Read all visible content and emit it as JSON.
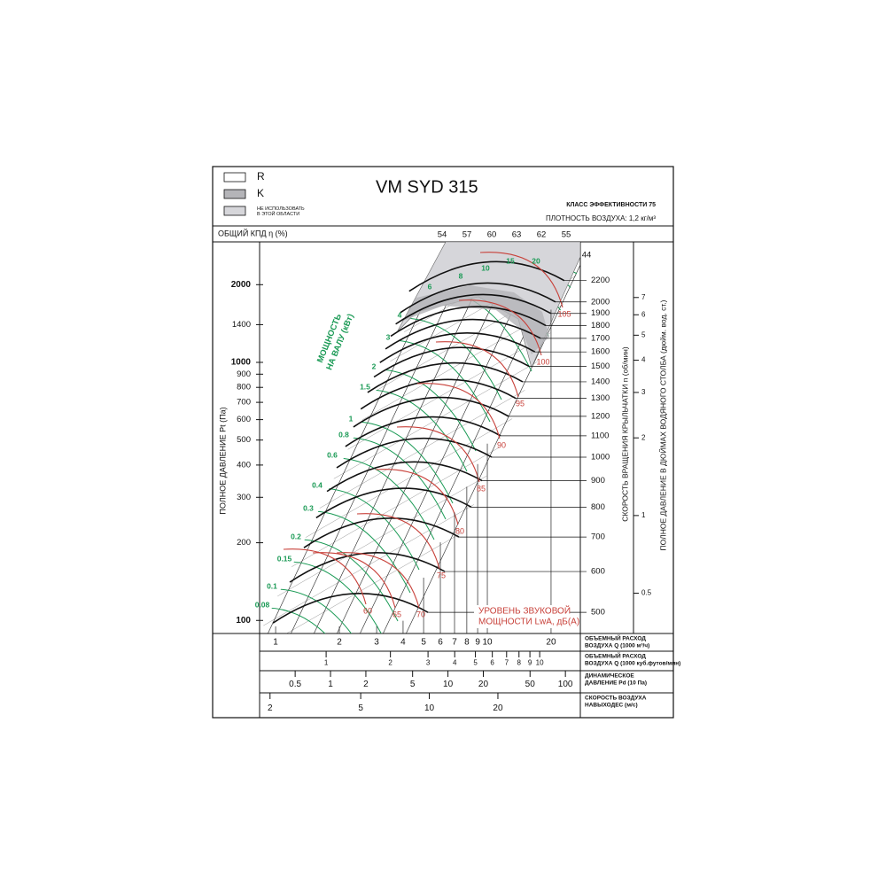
{
  "chart_data": {
    "type": "fan-curve",
    "title": "VM SYD 315",
    "efficiency_class": "КЛАСС ЭФФЕКТИВНОСТИ 75",
    "air_density": "ПЛОТНОСТЬ ВОЗДУХА: 1,2 кг/м³",
    "legend": [
      {
        "name": "R",
        "color": "#ffffff"
      },
      {
        "name": "K",
        "color": "#b4b4b8"
      },
      {
        "name": [
          "НЕ ИСПОЛЬЗОВАТЬ",
          "В ЭТОЙ ОБЛАСТИ"
        ],
        "color": "#d6d6da"
      }
    ],
    "efficiency_label": "ОБЩИЙ КПД η (%)",
    "efficiency_values": [
      54,
      57,
      60,
      63,
      62,
      55,
      44
    ],
    "ylabel": "ПОЛНОЕ ДАВЛЕНИЕ Pt (Па)",
    "yscale": "log",
    "ylim": [
      89,
      2930
    ],
    "yticks": [
      100,
      200,
      300,
      400,
      500,
      600,
      700,
      800,
      900,
      1000,
      1400,
      2000
    ],
    "power_label": [
      "МОЩНОСТЬ",
      "НА ВАЛУ (кВт)"
    ],
    "power_color": "#1a9a55",
    "power_values": [
      0.08,
      0.1,
      0.15,
      0.2,
      0.3,
      0.4,
      0.6,
      0.8,
      1,
      1.5,
      2,
      3,
      4,
      6,
      8,
      10,
      15,
      20
    ],
    "sound_label": [
      "УРОВЕНЬ ЗВУКОВОЙ",
      "МОЩНОСТИ LwA, дБ(A)"
    ],
    "sound_color": "#c8413a",
    "sound_values": [
      60,
      65,
      70,
      75,
      80,
      85,
      90,
      95,
      100,
      105
    ],
    "rpm_label": "СКОРОСТЬ ВРАЩЕНИЯ КРЫЛЬЧАТКИ n (об/мин)",
    "y2lim": [
      455,
      2615
    ],
    "y2ticks": [
      500,
      600,
      700,
      800,
      900,
      1000,
      1100,
      1200,
      1300,
      1400,
      1500,
      1600,
      1700,
      1800,
      1900,
      2000,
      2200
    ],
    "inch_label": "ПОЛНОЕ ДАВЛЕНИЕ В ДЮЙМАХ ВОДЯНОГО СТОЛБА (дюйм. вод. ст.)",
    "y3lim": [
      0.349,
      11.5
    ],
    "y3ticks": [
      0.5,
      1,
      2,
      3,
      4,
      5,
      6,
      7
    ],
    "x_scales": [
      {
        "label": [
          "ОБЪЕМНЫЙ РАСХОД",
          "ВОЗДУХА Q (1000 м³/ч)"
        ],
        "xscale": "log",
        "xlim": [
          0.84,
          27.5
        ],
        "xticks": [
          1,
          2,
          3,
          4,
          5,
          6,
          7,
          8,
          9,
          10,
          20
        ]
      },
      {
        "label": [
          "ОБЪЕМНЫЙ РАСХОД",
          "ВОЗДУХА Q (1000 куб.футов/мин)"
        ],
        "xscale": "log",
        "xlim": [
          0.488,
          15.5
        ],
        "xticks": [
          1,
          2,
          3,
          4,
          5,
          6,
          7,
          8,
          9,
          10
        ]
      },
      {
        "label": [
          "ДИНАМИЧЕСКОЕ",
          "ДАВЛЕНИЕ Pd (10 Па)"
        ],
        "xscale": "log",
        "xlim": [
          0.249,
          134
        ],
        "xticks": [
          0.5,
          1,
          2,
          5,
          10,
          20,
          50,
          100
        ]
      },
      {
        "label": [
          "СКОРОСТЬ ВОЗДУХА",
          "НАВЫХОДЕС (м/с)"
        ],
        "xscale": "log",
        "xlim": [
          1.8,
          46
        ],
        "xticks": [
          2,
          5,
          10,
          20
        ]
      }
    ]
  }
}
